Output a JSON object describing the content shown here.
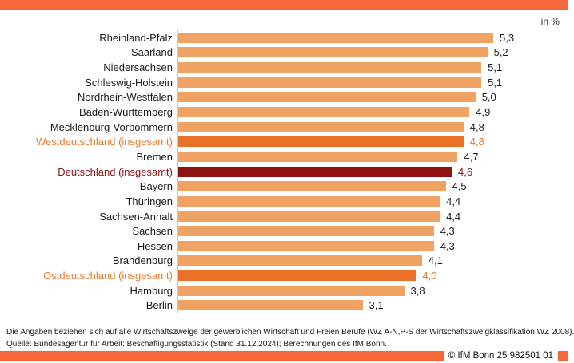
{
  "header": {
    "unit_label": "in %"
  },
  "colors": {
    "accent": "#F5673B",
    "bar_default": "#F0A262",
    "bar_total": "#EB7128",
    "bar_germany": "#8E1212",
    "text_orange": "#E8792E",
    "text_darkred": "#8E1414",
    "axis_line": "#C9C9C9"
  },
  "chart_data": {
    "type": "bar",
    "orientation": "horizontal",
    "title": "",
    "xlabel": "",
    "ylabel": "",
    "unit": "in %",
    "xlim": [
      0,
      5.3
    ],
    "grid": false,
    "legend": false,
    "categories": [
      "Rheinland-Pfalz",
      "Saarland",
      "Niedersachsen",
      "Schleswig-Holstein",
      "Nordrhein-Westfalen",
      "Baden-Württemberg",
      "Mecklenburg-Vorpommern",
      "Westdeutschland (insgesamt)",
      "Bremen",
      "Deutschland (insgesamt)",
      "Bayern",
      "Thüringen",
      "Sachsen-Anhalt",
      "Sachsen",
      "Hessen",
      "Brandenburg",
      "Ostdeutschland (insgesamt)",
      "Hamburg",
      "Berlin"
    ],
    "values": [
      5.3,
      5.2,
      5.1,
      5.1,
      5.0,
      4.9,
      4.8,
      4.8,
      4.7,
      4.6,
      4.5,
      4.4,
      4.4,
      4.3,
      4.3,
      4.1,
      4.0,
      3.8,
      3.1
    ],
    "value_labels": [
      "5,3",
      "5,2",
      "5,1",
      "5,1",
      "5,0",
      "4,9",
      "4,8",
      "4,8",
      "4,7",
      "4,6",
      "4,5",
      "4,4",
      "4,4",
      "4,3",
      "4,3",
      "4,1",
      "4,0",
      "3,8",
      "3,1"
    ],
    "bar_roles": [
      "default",
      "default",
      "default",
      "default",
      "default",
      "default",
      "default",
      "west_total",
      "default",
      "germany_total",
      "default",
      "default",
      "default",
      "default",
      "default",
      "default",
      "east_total",
      "default",
      "default"
    ]
  },
  "footer": {
    "note": "Die Angaben beziehen sich auf alle Wirtschaftszweige der gewerblichen Wirtschaft und Freien Berufe (WZ A-N,P-S der Wirtschaftszweigklassifikation WZ 2008).",
    "source": "Quelle: Bundesagentur für Arbeit: Beschäftigungsstatistik (Stand 31.12.2024); Berechnungen des IfM Bonn.",
    "copyright": "© IfM Bonn 25 982501 01"
  }
}
